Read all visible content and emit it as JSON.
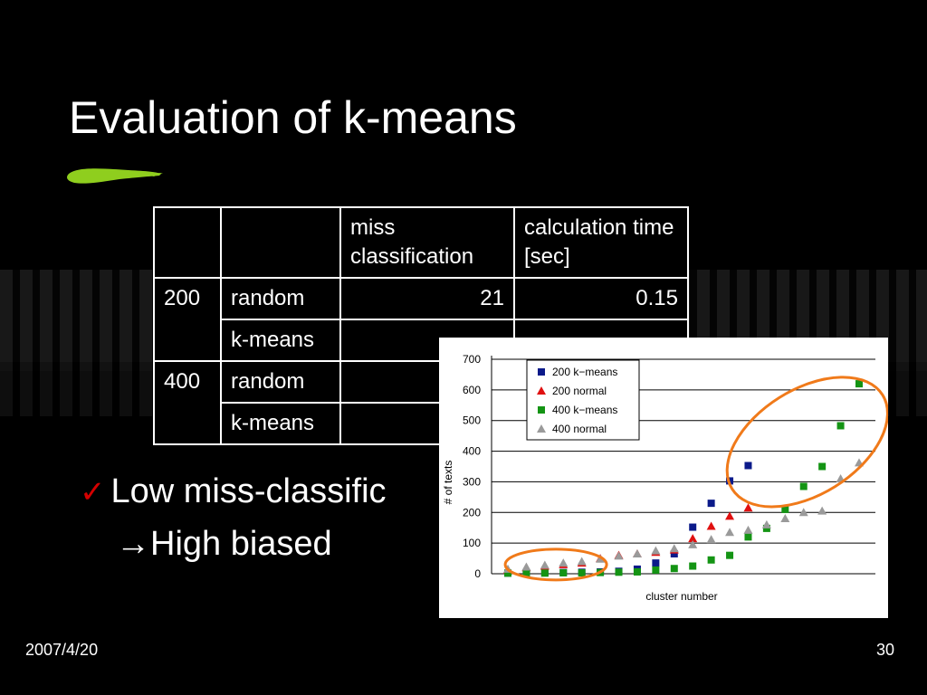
{
  "slide": {
    "title": "Evaluation of k-means",
    "bullet_text": "Low miss-classific",
    "subline": "→High biased",
    "date": "2007/4/20",
    "page": "30"
  },
  "table": {
    "headers": [
      "",
      "",
      "miss classification",
      "calculation time [sec]"
    ],
    "rows": [
      {
        "size": "200",
        "method": "random",
        "miss": "21",
        "time": "0.15"
      },
      {
        "size": "",
        "method": "k-means",
        "miss": "",
        "time": ""
      },
      {
        "size": "400",
        "method": "random",
        "miss": "",
        "time": ""
      },
      {
        "size": "",
        "method": "k-means",
        "miss": "",
        "time": ""
      }
    ]
  },
  "colors": {
    "background": "#000000",
    "text": "#ffffff",
    "brush": "#8fce1e",
    "check": "#d40000",
    "ellipse": "#f07a1a"
  },
  "chart_data": {
    "type": "scatter",
    "title": "",
    "xlabel": "cluster number",
    "ylabel": "# of texts",
    "ylim": [
      0,
      700
    ],
    "yticks": [
      0,
      100,
      200,
      300,
      400,
      500,
      600,
      700
    ],
    "grid": true,
    "legend": "top-left",
    "x": [
      1,
      2,
      3,
      4,
      5,
      6,
      7,
      8,
      9,
      10,
      11,
      12,
      13,
      14,
      15,
      16,
      17,
      18,
      19,
      20
    ],
    "series": [
      {
        "name": "200 k−means",
        "marker": "square",
        "color": "#0b1a8a",
        "points": [
          [
            1,
            2
          ],
          [
            2,
            3
          ],
          [
            3,
            3
          ],
          [
            4,
            4
          ],
          [
            5,
            5
          ],
          [
            6,
            6
          ],
          [
            7,
            8
          ],
          [
            8,
            15
          ],
          [
            9,
            35
          ],
          [
            10,
            65
          ],
          [
            11,
            152
          ],
          [
            12,
            230
          ],
          [
            13,
            303
          ],
          [
            14,
            353
          ]
        ]
      },
      {
        "name": "200 normal",
        "marker": "triangle",
        "color": "#e01010",
        "points": [
          [
            1,
            12
          ],
          [
            2,
            20
          ],
          [
            3,
            25
          ],
          [
            4,
            30
          ],
          [
            5,
            35
          ],
          [
            6,
            50
          ],
          [
            7,
            60
          ],
          [
            8,
            65
          ],
          [
            9,
            70
          ],
          [
            10,
            78
          ],
          [
            11,
            115
          ],
          [
            12,
            155
          ],
          [
            13,
            188
          ],
          [
            14,
            215
          ]
        ]
      },
      {
        "name": "400 k−means",
        "marker": "square",
        "color": "#149414",
        "points": [
          [
            1,
            2
          ],
          [
            2,
            2
          ],
          [
            3,
            2
          ],
          [
            4,
            3
          ],
          [
            5,
            3
          ],
          [
            6,
            4
          ],
          [
            7,
            5
          ],
          [
            8,
            6
          ],
          [
            9,
            12
          ],
          [
            10,
            17
          ],
          [
            11,
            25
          ],
          [
            12,
            45
          ],
          [
            13,
            60
          ],
          [
            14,
            120
          ],
          [
            15,
            148
          ],
          [
            16,
            210
          ],
          [
            17,
            285
          ],
          [
            18,
            350
          ],
          [
            19,
            483
          ],
          [
            20,
            620
          ]
        ]
      },
      {
        "name": "400 normal",
        "marker": "triangle",
        "color": "#9a9a9a",
        "points": [
          [
            1,
            15
          ],
          [
            2,
            22
          ],
          [
            3,
            28
          ],
          [
            4,
            35
          ],
          [
            5,
            40
          ],
          [
            6,
            48
          ],
          [
            7,
            58
          ],
          [
            8,
            65
          ],
          [
            9,
            75
          ],
          [
            10,
            82
          ],
          [
            11,
            95
          ],
          [
            12,
            112
          ],
          [
            13,
            135
          ],
          [
            14,
            142
          ],
          [
            15,
            160
          ],
          [
            16,
            180
          ],
          [
            17,
            200
          ],
          [
            18,
            205
          ],
          [
            19,
            310
          ],
          [
            20,
            362
          ]
        ]
      }
    ],
    "annotations": [
      {
        "shape": "ellipse",
        "around": "low cluster numbers"
      },
      {
        "shape": "ellipse",
        "around": "high cluster numbers"
      }
    ]
  }
}
